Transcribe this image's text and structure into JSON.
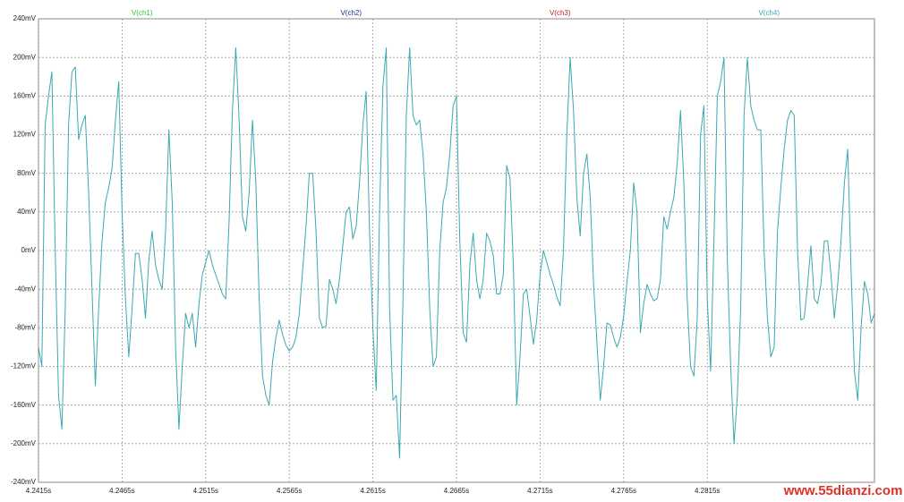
{
  "chart_data": {
    "type": "line",
    "other_traces": [
      {
        "name": "V(ch1)",
        "color": "#2fc62f"
      },
      {
        "name": "V(ch2)",
        "color": "#1c2a8c"
      },
      {
        "name": "V(ch3)",
        "color": "#c82020"
      }
    ],
    "series": [
      {
        "name": "V(ch4)",
        "color": "#3aa9b2",
        "values": [
          -100,
          -120,
          130,
          160,
          185,
          0,
          -150,
          -185,
          -60,
          130,
          185,
          190,
          115,
          130,
          140,
          60,
          -40,
          -140,
          -60,
          10,
          50,
          65,
          85,
          135,
          175,
          40,
          -50,
          -110,
          -60,
          -3,
          -3,
          -30,
          -70,
          -10,
          20,
          -15,
          -30,
          -40,
          20,
          125,
          50,
          -100,
          -185,
          -120,
          -65,
          -80,
          -65,
          -100,
          -55,
          -25,
          -12,
          0,
          -15,
          -25,
          -35,
          -45,
          -50,
          30,
          145,
          210,
          135,
          35,
          20,
          60,
          135,
          70,
          -50,
          -130,
          -150,
          -160,
          -115,
          -90,
          -72,
          -87,
          -98,
          -104,
          -100,
          -90,
          -65,
          -20,
          25,
          80,
          80,
          20,
          -70,
          -80,
          -78,
          -30,
          -40,
          -55,
          -30,
          5,
          40,
          45,
          12,
          25,
          70,
          130,
          165,
          20,
          -80,
          -145,
          40,
          170,
          210,
          -60,
          -155,
          -150,
          -215,
          -50,
          140,
          210,
          140,
          130,
          135,
          100,
          40,
          -60,
          -120,
          -110,
          0,
          50,
          65,
          100,
          150,
          160,
          10,
          -85,
          -95,
          -15,
          18,
          -30,
          -50,
          -30,
          18,
          10,
          -5,
          -45,
          -45,
          -25,
          88,
          75,
          -15,
          -160,
          -110,
          -45,
          -40,
          -68,
          -97,
          -72,
          -25,
          0,
          -12,
          -25,
          -35,
          -48,
          -57,
          0,
          120,
          200,
          145,
          55,
          15,
          80,
          100,
          55,
          -35,
          -95,
          -155,
          -120,
          -75,
          -77,
          -90,
          -100,
          -90,
          -68,
          -32,
          0,
          70,
          40,
          -85,
          -55,
          -35,
          -45,
          -52,
          -50,
          -30,
          35,
          22,
          40,
          55,
          90,
          145,
          70,
          -50,
          -120,
          -130,
          -70,
          120,
          150,
          -50,
          -125,
          10,
          160,
          175,
          200,
          -10,
          -120,
          -200,
          -150,
          -60,
          140,
          200,
          150,
          135,
          125,
          125,
          0,
          -70,
          -110,
          -100,
          20,
          65,
          105,
          135,
          145,
          140,
          0,
          -72,
          -70,
          -35,
          5,
          -50,
          -55,
          -35,
          10,
          10,
          -25,
          -70,
          -35,
          10,
          70,
          105,
          -20,
          -125,
          -155,
          -80,
          -32,
          -45,
          -75,
          -65
        ]
      }
    ],
    "x": [
      4.2415,
      4.2417,
      4.2419,
      4.2421,
      4.2423,
      4.2425,
      4.2427,
      4.2429,
      4.2431,
      4.2433,
      4.2435,
      4.2437,
      4.2439,
      4.2441,
      4.2443,
      4.2445,
      4.2447,
      4.2449,
      4.2451,
      4.2453,
      4.2455,
      4.2457,
      4.2459,
      4.2461,
      4.2463,
      4.2465,
      4.2467,
      4.2469,
      4.2471,
      4.2473,
      4.2475,
      4.2477,
      4.2479,
      4.2481,
      4.2483,
      4.2485,
      4.2487,
      4.2489,
      4.2491,
      4.2493,
      4.2495,
      4.2497,
      4.2499,
      4.2501,
      4.2503,
      4.2505,
      4.2507,
      4.2509,
      4.2511,
      4.2513,
      4.2515,
      4.2517,
      4.2519,
      4.2521,
      4.2523,
      4.2525,
      4.2527,
      4.2529,
      4.2531,
      4.2533,
      4.2535,
      4.2537,
      4.2539,
      4.2541,
      4.2543,
      4.2545,
      4.2547,
      4.2549,
      4.2551,
      4.2553,
      4.2555,
      4.2557,
      4.2559,
      4.2561,
      4.2563,
      4.2565,
      4.2567,
      4.2569,
      4.2571,
      4.2573,
      4.2575,
      4.2577,
      4.2579,
      4.2581,
      4.2583,
      4.2585,
      4.2587,
      4.2589,
      4.2591,
      4.2593,
      4.2595,
      4.2597,
      4.2599,
      4.2601,
      4.2603,
      4.2605,
      4.2607,
      4.2609,
      4.2611,
      4.2613,
      4.2615,
      4.2617,
      4.2619,
      4.2621,
      4.2623,
      4.2625,
      4.2627,
      4.2629,
      4.2631,
      4.2633,
      4.2635,
      4.2637,
      4.2639,
      4.2641,
      4.2643,
      4.2645,
      4.2647,
      4.2649,
      4.2651,
      4.2653,
      4.2655,
      4.2657,
      4.2659,
      4.2661,
      4.2663,
      4.2665,
      4.2667,
      4.2669,
      4.2671,
      4.2673,
      4.2675,
      4.2677,
      4.2679,
      4.2681,
      4.2683,
      4.2685,
      4.2687,
      4.2689,
      4.2691,
      4.2693,
      4.2695,
      4.2697,
      4.2699,
      4.2701,
      4.2703,
      4.2705,
      4.2707,
      4.2709,
      4.2711,
      4.2713,
      4.2715,
      4.2717,
      4.2719,
      4.2721,
      4.2723,
      4.2725,
      4.2727,
      4.2729,
      4.2731,
      4.2733,
      4.2735,
      4.2737,
      4.2739,
      4.2741,
      4.2743,
      4.2745,
      4.2747,
      4.2749,
      4.2751,
      4.2753,
      4.2755,
      4.2757,
      4.2759,
      4.2761,
      4.2763,
      4.2765,
      4.2767,
      4.2769,
      4.2771,
      4.2773,
      4.2775,
      4.2777,
      4.2779,
      4.2781,
      4.2783,
      4.2785,
      4.2787,
      4.2789,
      4.2791,
      4.2793,
      4.2795,
      4.2797,
      4.2799,
      4.2801,
      4.2803,
      4.2805,
      4.2807,
      4.2809,
      4.2811,
      4.2813,
      4.2815,
      4.2817,
      4.2819,
      4.2821,
      4.2823,
      4.2825,
      4.2827,
      4.2829,
      4.2831,
      4.2833,
      4.2835,
      4.2837,
      4.2839,
      4.2841,
      4.2843,
      4.2845,
      4.2847,
      4.2849,
      4.2851,
      4.2853,
      4.2855,
      4.2857,
      4.2859,
      4.2861,
      4.2863,
      4.2865,
      4.2867,
      4.2869,
      4.2871,
      4.2873,
      4.2875,
      4.2877,
      4.2879,
      4.2881,
      4.2883,
      4.2885,
      4.2887,
      4.2889,
      4.2891,
      4.2893,
      4.2895,
      4.2897,
      4.2899,
      4.2901,
      4.2903,
      4.2905,
      4.2907,
      4.2909,
      4.2911,
      4.2913,
      4.2915
    ],
    "xlim": [
      4.2415,
      4.2915
    ],
    "ylim": [
      -240,
      240
    ],
    "xticks": [
      {
        "value": 4.2415,
        "label": "4.2415s"
      },
      {
        "value": 4.2465,
        "label": "4.2465s"
      },
      {
        "value": 4.2515,
        "label": "4.2515s"
      },
      {
        "value": 4.2565,
        "label": "4.2565s"
      },
      {
        "value": 4.2615,
        "label": "4.2615s"
      },
      {
        "value": 4.2665,
        "label": "4.2665s"
      },
      {
        "value": 4.2715,
        "label": "4.2715s"
      },
      {
        "value": 4.2765,
        "label": "4.2765s"
      },
      {
        "value": 4.2815,
        "label": "4.2815s"
      }
    ],
    "yticks": [
      {
        "value": -240,
        "label": "-240mV"
      },
      {
        "value": -200,
        "label": "-200mV"
      },
      {
        "value": -160,
        "label": "-160mV"
      },
      {
        "value": -120,
        "label": "-120mV"
      },
      {
        "value": -80,
        "label": "-80mV"
      },
      {
        "value": -40,
        "label": "-40mV"
      },
      {
        "value": 0,
        "label": "0mV"
      },
      {
        "value": 40,
        "label": "40mV"
      },
      {
        "value": 80,
        "label": "80mV"
      },
      {
        "value": 120,
        "label": "120mV"
      },
      {
        "value": 160,
        "label": "160mV"
      },
      {
        "value": 200,
        "label": "200mV"
      },
      {
        "value": 240,
        "label": "240mV"
      }
    ],
    "grid": true
  },
  "watermark": "www.55dianzi.com"
}
